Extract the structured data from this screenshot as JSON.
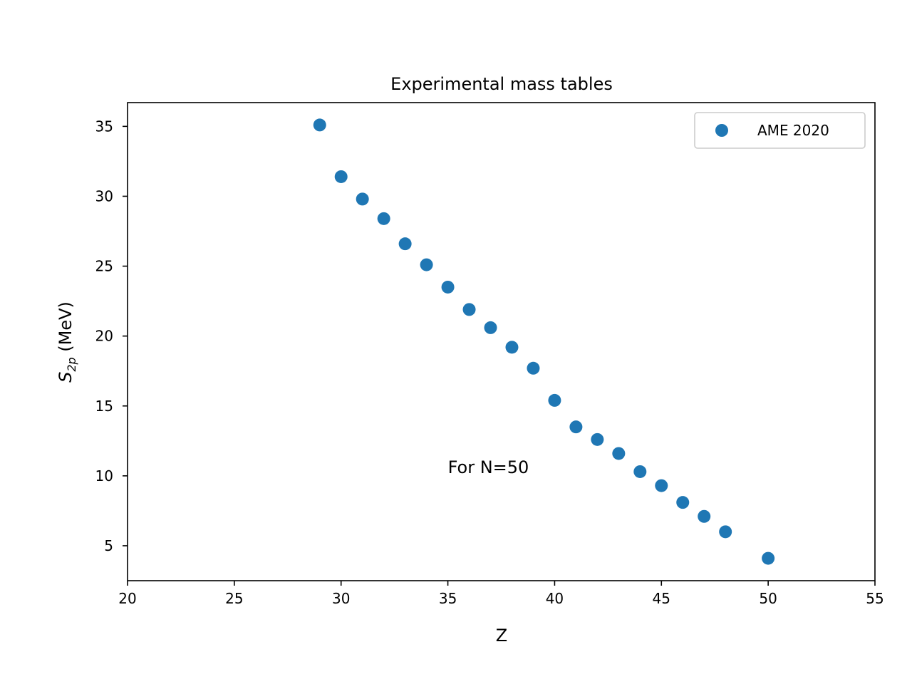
{
  "chart_data": {
    "type": "scatter",
    "title": "Experimental mass tables",
    "xlabel": "Z",
    "ylabel_main": "S",
    "ylabel_sub": "2p",
    "ylabel_unit": " (MeV)",
    "xlim": [
      20,
      55
    ],
    "ylim": [
      2.5,
      36.7
    ],
    "xticks": [
      20,
      25,
      30,
      35,
      40,
      45,
      50,
      55
    ],
    "yticks": [
      5,
      10,
      15,
      20,
      25,
      30,
      35
    ],
    "grid": false,
    "legend_position": "top-right",
    "series": [
      {
        "name": "AME 2020",
        "color": "#1f77b4",
        "x": [
          29,
          30,
          31,
          32,
          33,
          34,
          35,
          36,
          37,
          38,
          39,
          40,
          41,
          42,
          43,
          44,
          45,
          46,
          47,
          48,
          50
        ],
        "y": [
          35.1,
          31.4,
          29.8,
          28.4,
          26.6,
          25.1,
          23.5,
          21.9,
          20.6,
          19.2,
          17.7,
          15.4,
          13.5,
          12.6,
          11.6,
          10.3,
          9.3,
          8.1,
          7.1,
          6.0,
          4.1
        ]
      }
    ],
    "annotations": [
      {
        "text": "For N=50",
        "x": 35,
        "y": 10.2
      }
    ]
  }
}
